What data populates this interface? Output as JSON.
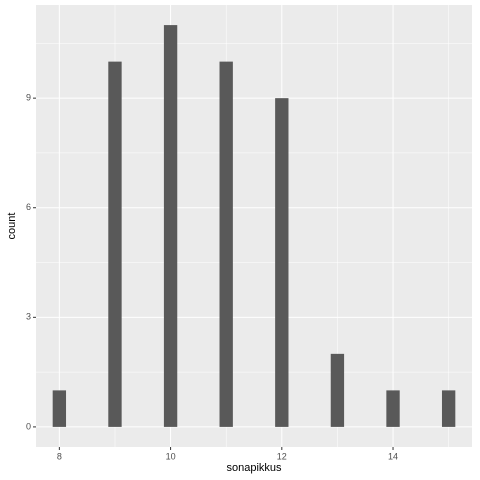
{
  "chart_data": {
    "type": "bar",
    "x_label": "sonapikkus",
    "y_label": "count",
    "x": [
      8,
      9,
      10,
      11,
      12,
      13,
      14,
      15
    ],
    "values": [
      1,
      10,
      11,
      10,
      9,
      2,
      1,
      1
    ],
    "color": "#595959",
    "xlim": [
      7.58,
      15.42
    ],
    "xticks": [
      8,
      10,
      12,
      14
    ],
    "ylim": [
      -0.55,
      11.55
    ],
    "yticks": [
      0,
      3,
      6,
      9
    ],
    "grid": true
  }
}
